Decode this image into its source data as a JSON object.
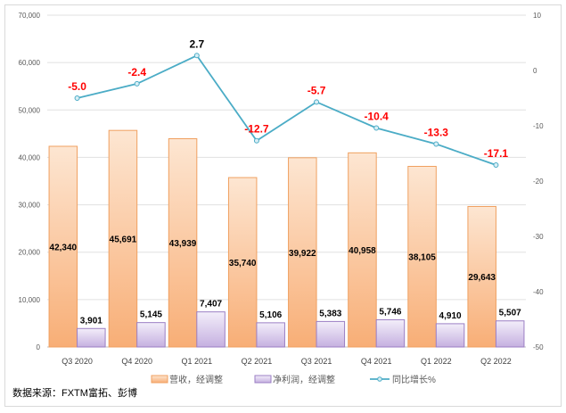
{
  "chart_data": {
    "type": "bar",
    "categories": [
      "Q3 2020",
      "Q4 2020",
      "Q1 2021",
      "Q2 2021",
      "Q3 2021",
      "Q4 2021",
      "Q1 2022",
      "Q2 2022"
    ],
    "series": [
      {
        "name": "营收，经调整",
        "type": "bar",
        "axis": "left",
        "values": [
          42340,
          45691,
          43939,
          35740,
          39922,
          40958,
          38105,
          29643
        ],
        "labels": [
          "42,340",
          "45,691",
          "43,939",
          "35,740",
          "39,922",
          "40,958",
          "38,105",
          "29,643"
        ],
        "color": "#f8b27c"
      },
      {
        "name": "净利润，经调整",
        "type": "bar",
        "axis": "left",
        "values": [
          3901,
          5145,
          7407,
          5106,
          5383,
          5746,
          4910,
          5507
        ],
        "labels": [
          "3,901",
          "5,145",
          "7,407",
          "5,106",
          "5,383",
          "5,746",
          "4,910",
          "5,507"
        ],
        "color": "#c7b3e2"
      },
      {
        "name": "同比增长%",
        "type": "line",
        "axis": "right",
        "values": [
          -5.0,
          -2.4,
          2.7,
          -12.7,
          -5.7,
          -10.4,
          -13.3,
          -17.1
        ],
        "labels": [
          "-5.0",
          "-2.4",
          "2.7",
          "-12.7",
          "-5.7",
          "-10.4",
          "-13.3",
          "-17.1"
        ],
        "color": "#4bacc6"
      }
    ],
    "y_left": {
      "range": [
        0,
        70000
      ],
      "ticks": [
        "0",
        "10,000",
        "20,000",
        "30,000",
        "40,000",
        "50,000",
        "60,000",
        "70,000"
      ]
    },
    "y_right": {
      "range": [
        -50,
        10
      ],
      "ticks": [
        "-50",
        "-40",
        "-30",
        "-20",
        "-10",
        "0",
        "10"
      ]
    },
    "grid": true,
    "legend": "bottom",
    "label_colors": {
      "negative": "#ff0000",
      "positive": "#000000"
    }
  },
  "source": "数据来源：FXTM富拓、彭博"
}
